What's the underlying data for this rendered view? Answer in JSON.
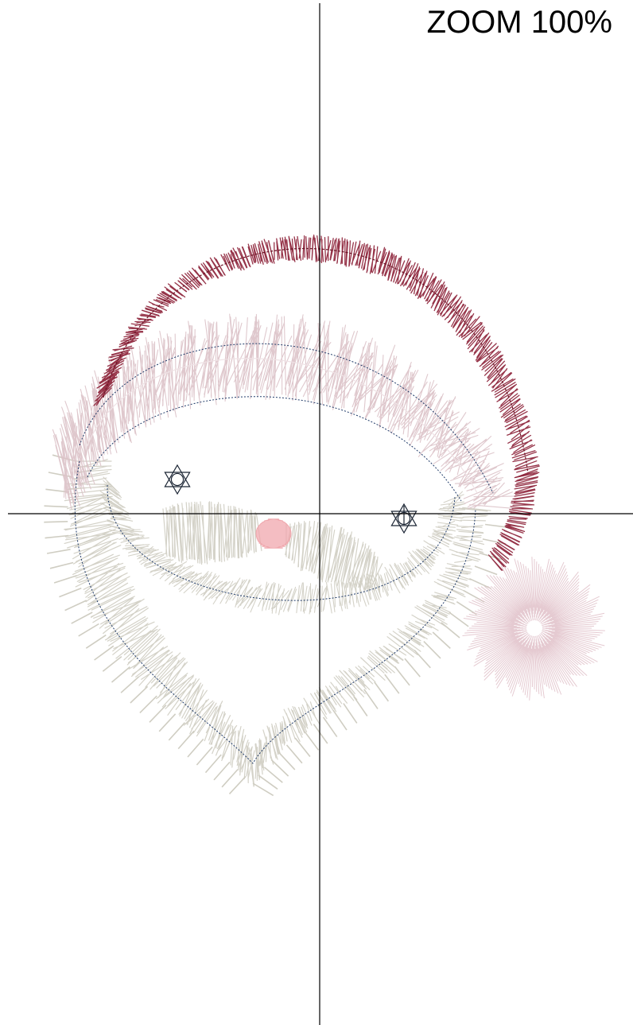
{
  "viewer": {
    "zoom_label": "ZOOM 100%"
  },
  "colors": {
    "background": "#ffffff",
    "axis": "#000000",
    "hat_red": "#8b1e35",
    "hat_trim_pink": "#dcc2c8",
    "beard_grey": "#cfcdc2",
    "outline_navy": "#1f3a68",
    "nose_pink": "#f0a7ad",
    "pompom_pink": "#e2c4cc",
    "eye_marker": "#1a2433"
  },
  "design": {
    "parts": [
      "hat-band",
      "hat-fur-trim",
      "pom-pom",
      "beard",
      "mustache",
      "nose",
      "left-eye-marker",
      "right-eye-marker"
    ]
  }
}
